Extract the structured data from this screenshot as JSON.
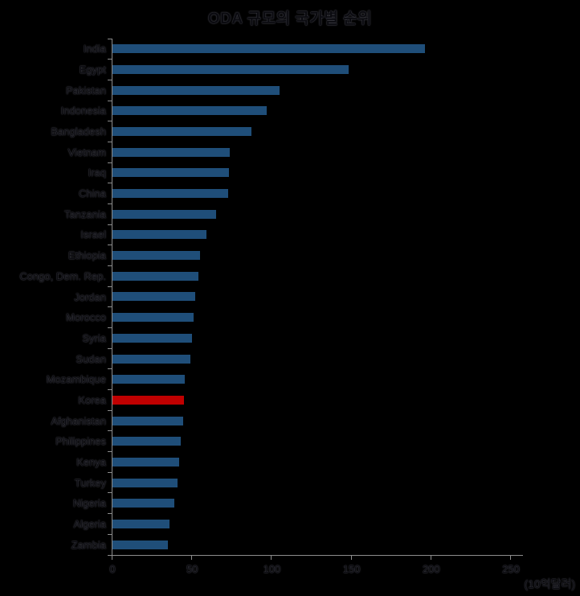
{
  "chart_data": {
    "type": "bar",
    "orientation": "horizontal",
    "title": "ODA 규모의 국가별 순위",
    "unit_label": "(10억달러)",
    "categories": [
      "India",
      "Egypt",
      "Pakistan",
      "Indonesia",
      "Bangladesh",
      "Vietnam",
      "Iraq",
      "China",
      "Tanzania",
      "Israel",
      "Ethiopia",
      "Congo, Dem. Rep.",
      "Jordan",
      "Morocco",
      "Syria",
      "Sudan",
      "Mozambique",
      "Korea",
      "Afghanistan",
      "Philippines",
      "Kenya",
      "Turkey",
      "Nigeria",
      "Algeria",
      "Zambia"
    ],
    "values": [
      196,
      148,
      105,
      97,
      87,
      73.5,
      73,
      72.5,
      65,
      59,
      55,
      54,
      52,
      51,
      50,
      49,
      45.5,
      45,
      44.5,
      43,
      42,
      41,
      39,
      36,
      35
    ],
    "highlight_category": "Korea",
    "highlight_color": "#c00000",
    "bar_color": "#1f4e79",
    "axis_color": "#8c8c8c",
    "background_color": "#000000",
    "text_color": "#0b0b10",
    "xlabel": "",
    "ylabel": "",
    "xlim": [
      0,
      250
    ],
    "x_ticks": [
      0,
      50,
      100,
      150,
      200,
      250
    ],
    "grid": "off",
    "legend": "none"
  }
}
